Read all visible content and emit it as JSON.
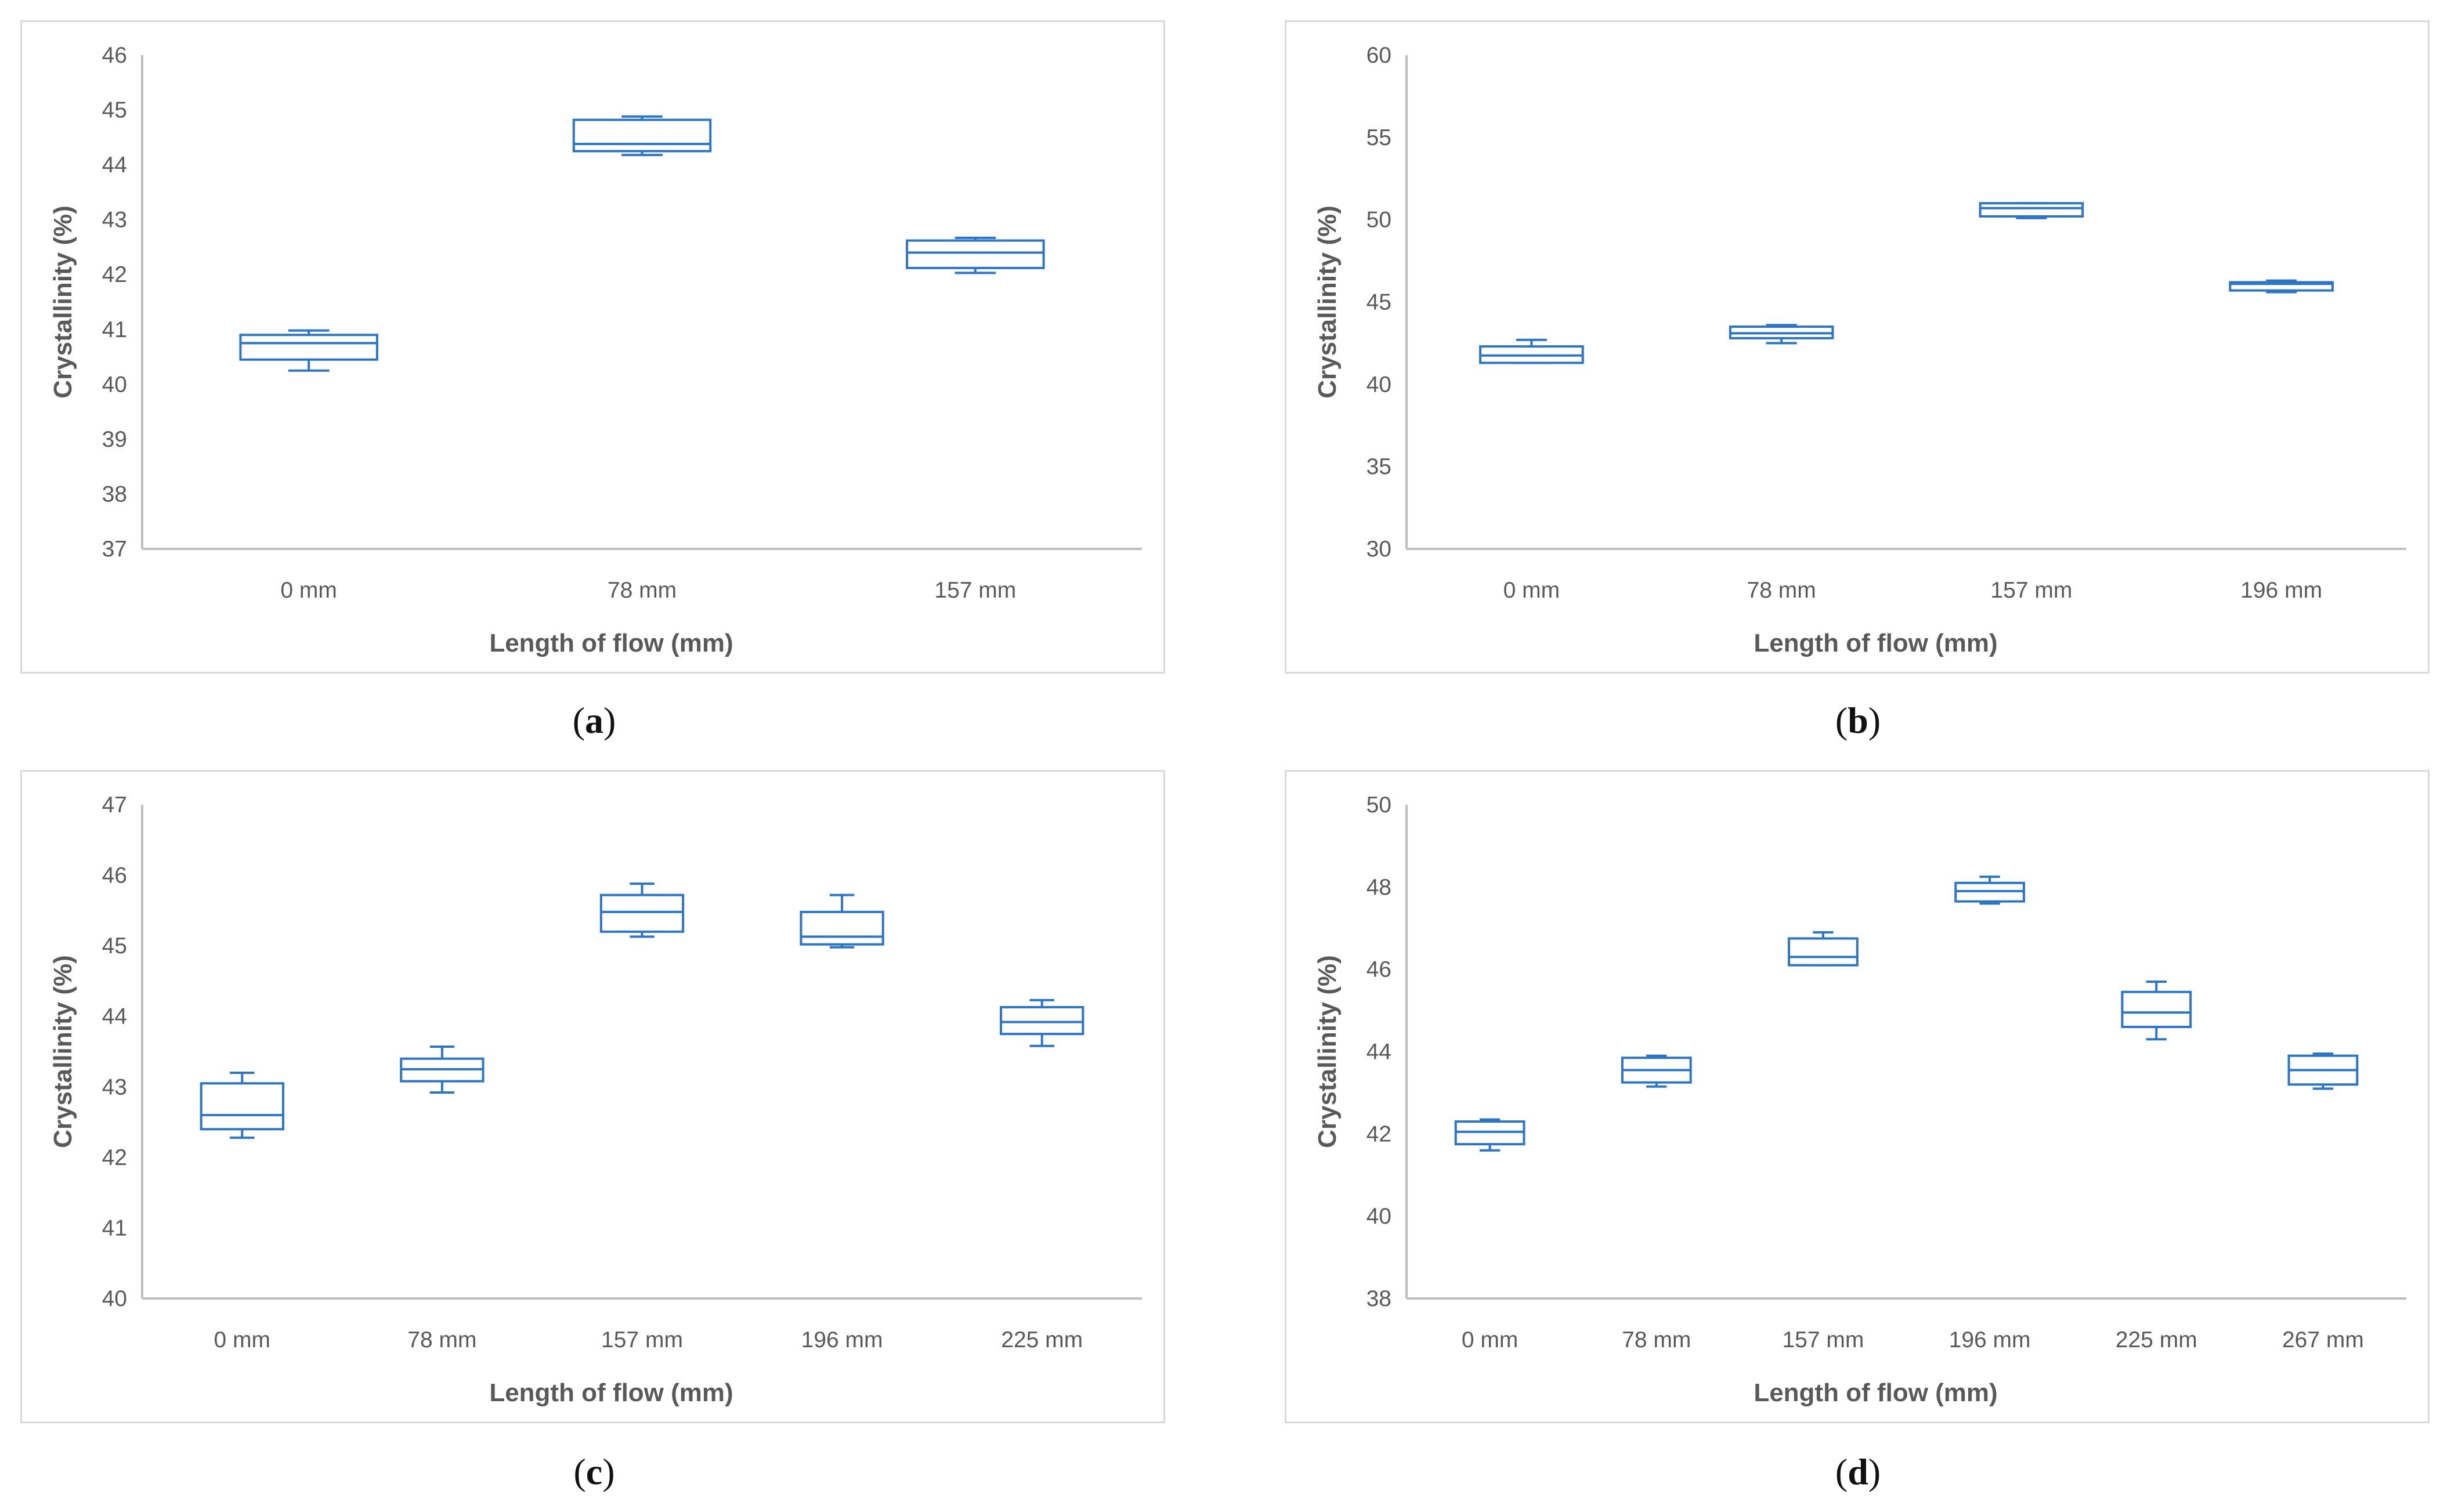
{
  "figure": {
    "captions": [
      "a",
      "b",
      "c",
      "d"
    ]
  },
  "colors": {
    "box": "#2e75c4",
    "axis": "#bfbfbf",
    "text": "#595959",
    "border": "#d9d9d9"
  },
  "chart_data": [
    {
      "id": "a",
      "type": "box",
      "xlabel": "Length of flow (mm)",
      "ylabel": "Crystallinity (%)",
      "ylim": [
        37,
        46
      ],
      "ystep": 1,
      "categories": [
        "0 mm",
        "78 mm",
        "157 mm"
      ],
      "boxes": [
        {
          "min": 40.25,
          "q1": 40.45,
          "median": 40.75,
          "q3": 40.9,
          "max": 40.98
        },
        {
          "min": 44.18,
          "q1": 44.25,
          "median": 44.38,
          "q3": 44.82,
          "max": 44.88
        },
        {
          "min": 42.03,
          "q1": 42.12,
          "median": 42.4,
          "q3": 42.62,
          "max": 42.67
        }
      ]
    },
    {
      "id": "b",
      "type": "box",
      "xlabel": "Length of flow (mm)",
      "ylabel": "Crystallinity (%)",
      "ylim": [
        30,
        60
      ],
      "ystep": 5,
      "categories": [
        "0 mm",
        "78 mm",
        "157 mm",
        "196 mm"
      ],
      "boxes": [
        {
          "min": 41.3,
          "q1": 41.3,
          "median": 41.75,
          "q3": 42.3,
          "max": 42.7
        },
        {
          "min": 42.5,
          "q1": 42.8,
          "median": 43.1,
          "q3": 43.5,
          "max": 43.6
        },
        {
          "min": 50.1,
          "q1": 50.2,
          "median": 50.7,
          "q3": 51.0,
          "max": 51.0
        },
        {
          "min": 45.6,
          "q1": 45.7,
          "median": 46.1,
          "q3": 46.2,
          "max": 46.3
        }
      ]
    },
    {
      "id": "c",
      "type": "box",
      "xlabel": "Length of flow (mm)",
      "ylabel": "Crystallinity (%)",
      "ylim": [
        40,
        47
      ],
      "ystep": 1,
      "categories": [
        "0 mm",
        "78 mm",
        "157 mm",
        "196 mm",
        "225 mm"
      ],
      "boxes": [
        {
          "min": 42.28,
          "q1": 42.4,
          "median": 42.6,
          "q3": 43.05,
          "max": 43.2
        },
        {
          "min": 42.92,
          "q1": 43.08,
          "median": 43.25,
          "q3": 43.4,
          "max": 43.57
        },
        {
          "min": 45.13,
          "q1": 45.2,
          "median": 45.48,
          "q3": 45.72,
          "max": 45.88
        },
        {
          "min": 44.98,
          "q1": 45.02,
          "median": 45.13,
          "q3": 45.48,
          "max": 45.72
        },
        {
          "min": 43.58,
          "q1": 43.75,
          "median": 43.92,
          "q3": 44.13,
          "max": 44.23
        }
      ]
    },
    {
      "id": "d",
      "type": "box",
      "xlabel": "Length of flow (mm)",
      "ylabel": "Crystallinity (%)",
      "ylim": [
        38,
        50
      ],
      "ystep": 2,
      "categories": [
        "0 mm",
        "78 mm",
        "157 mm",
        "196 mm",
        "225 mm",
        "267 mm"
      ],
      "boxes": [
        {
          "min": 41.6,
          "q1": 41.75,
          "median": 42.05,
          "q3": 42.3,
          "max": 42.35
        },
        {
          "min": 43.15,
          "q1": 43.25,
          "median": 43.55,
          "q3": 43.85,
          "max": 43.9
        },
        {
          "min": 46.1,
          "q1": 46.1,
          "median": 46.3,
          "q3": 46.75,
          "max": 46.9
        },
        {
          "min": 47.6,
          "q1": 47.65,
          "median": 47.9,
          "q3": 48.1,
          "max": 48.25
        },
        {
          "min": 44.3,
          "q1": 44.6,
          "median": 44.95,
          "q3": 45.45,
          "max": 45.7
        },
        {
          "min": 43.1,
          "q1": 43.2,
          "median": 43.55,
          "q3": 43.9,
          "max": 43.95
        }
      ]
    }
  ]
}
